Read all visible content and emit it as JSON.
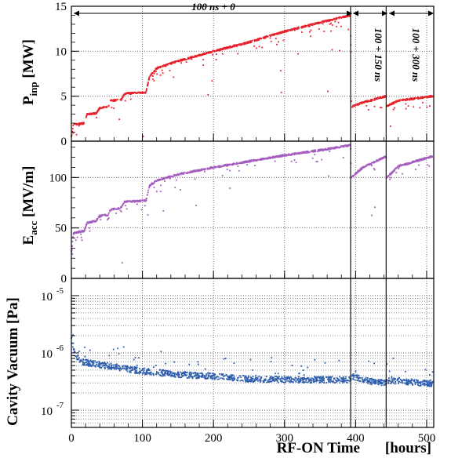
{
  "chart_data": [
    {
      "name": "inp",
      "type": "scatter",
      "ylabel_main": "P",
      "ylabel_sub": "inp",
      "ylabel_unit": "[MW]",
      "ylim": [
        0,
        15
      ],
      "yticks": [
        0,
        5,
        10,
        15
      ],
      "color": "#e8202a",
      "profile": [
        [
          0,
          0.5
        ],
        [
          3,
          1.9
        ],
        [
          10,
          1.9
        ],
        [
          18,
          2.0
        ],
        [
          22,
          3.0
        ],
        [
          35,
          3.1
        ],
        [
          40,
          3.7
        ],
        [
          52,
          3.8
        ],
        [
          55,
          4.5
        ],
        [
          70,
          4.6
        ],
        [
          75,
          5.3
        ],
        [
          105,
          5.4
        ],
        [
          110,
          7.2
        ],
        [
          120,
          8.1
        ],
        [
          150,
          8.9
        ],
        [
          200,
          10.0
        ],
        [
          250,
          11.0
        ],
        [
          300,
          12.2
        ],
        [
          350,
          13.2
        ],
        [
          393,
          14.0
        ],
        [
          394,
          3.8
        ],
        [
          410,
          4.3
        ],
        [
          443,
          5.0
        ],
        [
          444,
          3.9
        ],
        [
          460,
          4.5
        ],
        [
          508,
          5.0
        ]
      ]
    },
    {
      "name": "acc",
      "type": "scatter",
      "ylabel_main": "E",
      "ylabel_sub": "acc",
      "ylabel_unit": "[MV/m]",
      "ylim": [
        0,
        136
      ],
      "yticks": [
        0,
        50,
        100
      ],
      "color": "#a45cbe",
      "profile": [
        [
          0,
          25
        ],
        [
          3,
          45
        ],
        [
          10,
          46
        ],
        [
          18,
          47
        ],
        [
          22,
          55
        ],
        [
          35,
          57
        ],
        [
          40,
          62
        ],
        [
          52,
          63
        ],
        [
          55,
          68
        ],
        [
          70,
          70
        ],
        [
          75,
          76
        ],
        [
          105,
          77
        ],
        [
          110,
          92
        ],
        [
          120,
          97
        ],
        [
          150,
          103
        ],
        [
          200,
          110
        ],
        [
          250,
          116
        ],
        [
          300,
          122
        ],
        [
          350,
          127
        ],
        [
          393,
          132
        ],
        [
          394,
          100
        ],
        [
          410,
          110
        ],
        [
          443,
          121
        ],
        [
          444,
          100
        ],
        [
          460,
          111
        ],
        [
          508,
          121
        ]
      ]
    },
    {
      "name": "vac",
      "type": "scatter",
      "ylabel": "Cavity  Vacuum [Pa]",
      "yscale": "log",
      "ylim": [
        5e-08,
        2e-05
      ],
      "ytick_base": "10",
      "ytick_exponents": [
        "-5",
        "-6",
        "-7"
      ],
      "color": "#2f5fae",
      "profile": [
        [
          0,
          1.8e-06
        ],
        [
          5,
          9e-07
        ],
        [
          15,
          7e-07
        ],
        [
          30,
          6.5e-07
        ],
        [
          50,
          6e-07
        ],
        [
          80,
          5.2e-07
        ],
        [
          100,
          4.8e-07
        ],
        [
          150,
          4.2e-07
        ],
        [
          200,
          3.9e-07
        ],
        [
          250,
          3.5e-07
        ],
        [
          300,
          3.4e-07
        ],
        [
          393,
          3.4e-07
        ],
        [
          396,
          3.9e-07
        ],
        [
          420,
          3.2e-07
        ],
        [
          443,
          3e-07
        ],
        [
          446,
          3.3e-07
        ],
        [
          508,
          2.9e-07
        ]
      ]
    }
  ],
  "x_axis": {
    "label_main": "RF-ON Time",
    "label_unit": "[hours]",
    "xlim": [
      0,
      510
    ],
    "ticks": [
      0,
      100,
      200,
      300,
      400,
      500
    ]
  },
  "segments": {
    "boundaries": [
      393,
      443
    ],
    "labels": [
      "100 ns + 0",
      "100 + 150 ns",
      "100 + 300 ns"
    ]
  }
}
